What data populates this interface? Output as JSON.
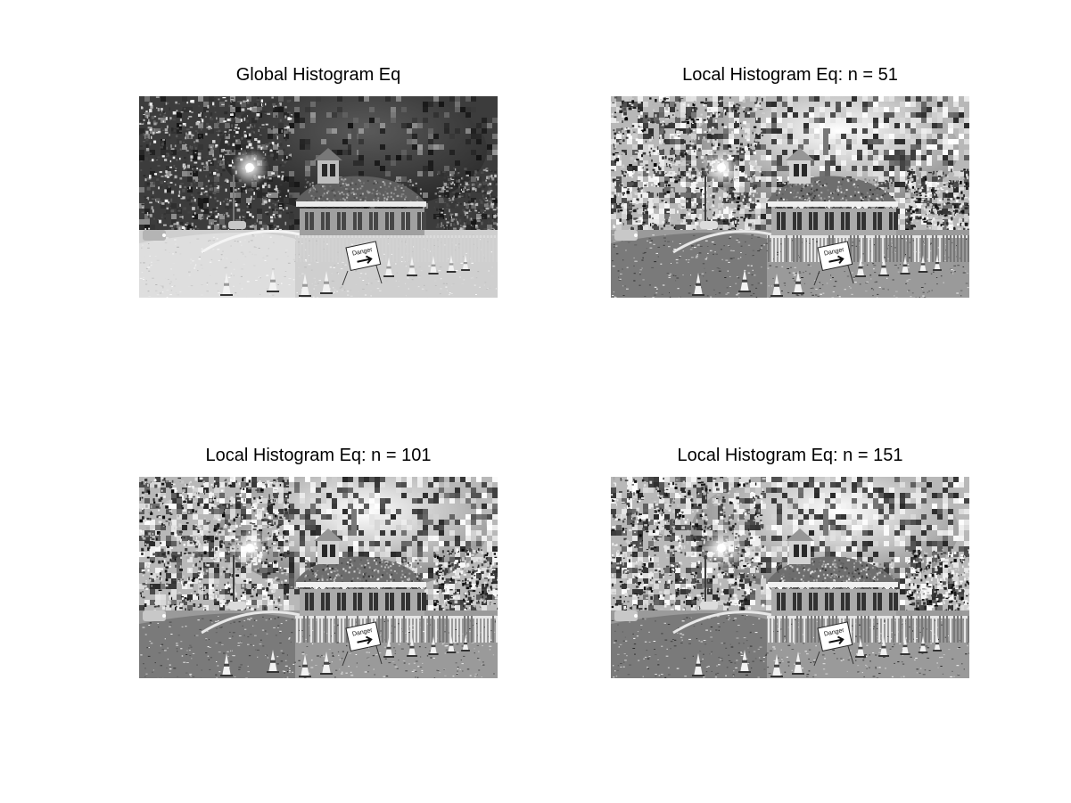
{
  "figure": {
    "panels": [
      {
        "title": "Global Histogram Eq",
        "variant": "global"
      },
      {
        "title": "Local Histogram Eq: n = 51",
        "variant": "local"
      },
      {
        "title": "Local Histogram Eq: n = 101",
        "variant": "local"
      },
      {
        "title": "Local Histogram Eq: n = 151",
        "variant": "local"
      }
    ],
    "image_content": {
      "sign_text": "Danger",
      "colors": {
        "background": "#ffffff",
        "title_text": "#000000"
      }
    }
  }
}
